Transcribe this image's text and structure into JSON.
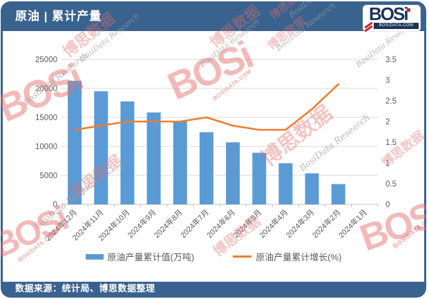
{
  "header": {
    "title": "原油 | 累计产量"
  },
  "logo": {
    "text": "BOSi",
    "subtext": "BOSIDATA.COM"
  },
  "chart_data": {
    "type": "bar+line combo",
    "categories": [
      "2024年12月",
      "2024年11月",
      "2024年10月",
      "2024年9月",
      "2024年8月",
      "2024年7月",
      "2024年6月",
      "2024年5月",
      "2024年4月",
      "2024年3月",
      "2024年2月",
      "2024年1月"
    ],
    "series": [
      {
        "name": "原油产量累计值(万吨)",
        "type": "bar",
        "axis": "left",
        "color": "#5B9BD5",
        "values": [
          21300,
          19500,
          17750,
          15850,
          14300,
          12450,
          10700,
          8900,
          7100,
          5350,
          3500,
          null
        ]
      },
      {
        "name": "原油产量累计增长(%)",
        "type": "line",
        "axis": "right",
        "color": "#ED7D31",
        "values": [
          1.8,
          1.9,
          2.0,
          2.0,
          2.0,
          2.1,
          1.9,
          1.8,
          1.8,
          2.3,
          2.9,
          null
        ]
      }
    ],
    "left_axis": {
      "min": 0,
      "max": 25000,
      "step": 5000,
      "ticks": [
        "25000",
        "20000",
        "15000",
        "10000",
        "5000",
        "0"
      ]
    },
    "right_axis": {
      "min": 0,
      "max": 3.5,
      "step": 0.5,
      "ticks": [
        "3.5",
        "3",
        "2.5",
        "2",
        "1.5",
        "1",
        "0.5",
        "0"
      ]
    },
    "grid": true,
    "legend_position": "bottom",
    "x_label_rotation": -45
  },
  "legend": {
    "items": [
      {
        "label": "原油产量累计值(万吨)",
        "color": "#5B9BD5",
        "shape": "bar"
      },
      {
        "label": "原油产量累计增长(%)",
        "color": "#ED7D31",
        "shape": "line"
      }
    ]
  },
  "footer": {
    "source": "数据来源：统计局、博思数据整理"
  },
  "watermark": {
    "logo_text": "BOSi",
    "cn_text": "博思数据",
    "en_text": "BosiData Research",
    "domain_text": "BOSIDATA.COM",
    "red": "#E2706E",
    "gray": "#9B9B9B"
  },
  "colors": {
    "frame": "#3A628E",
    "bar": "#5B9BD5",
    "line": "#ED7D31",
    "grid": "#D9D9D9",
    "axis_text": "#595959"
  }
}
